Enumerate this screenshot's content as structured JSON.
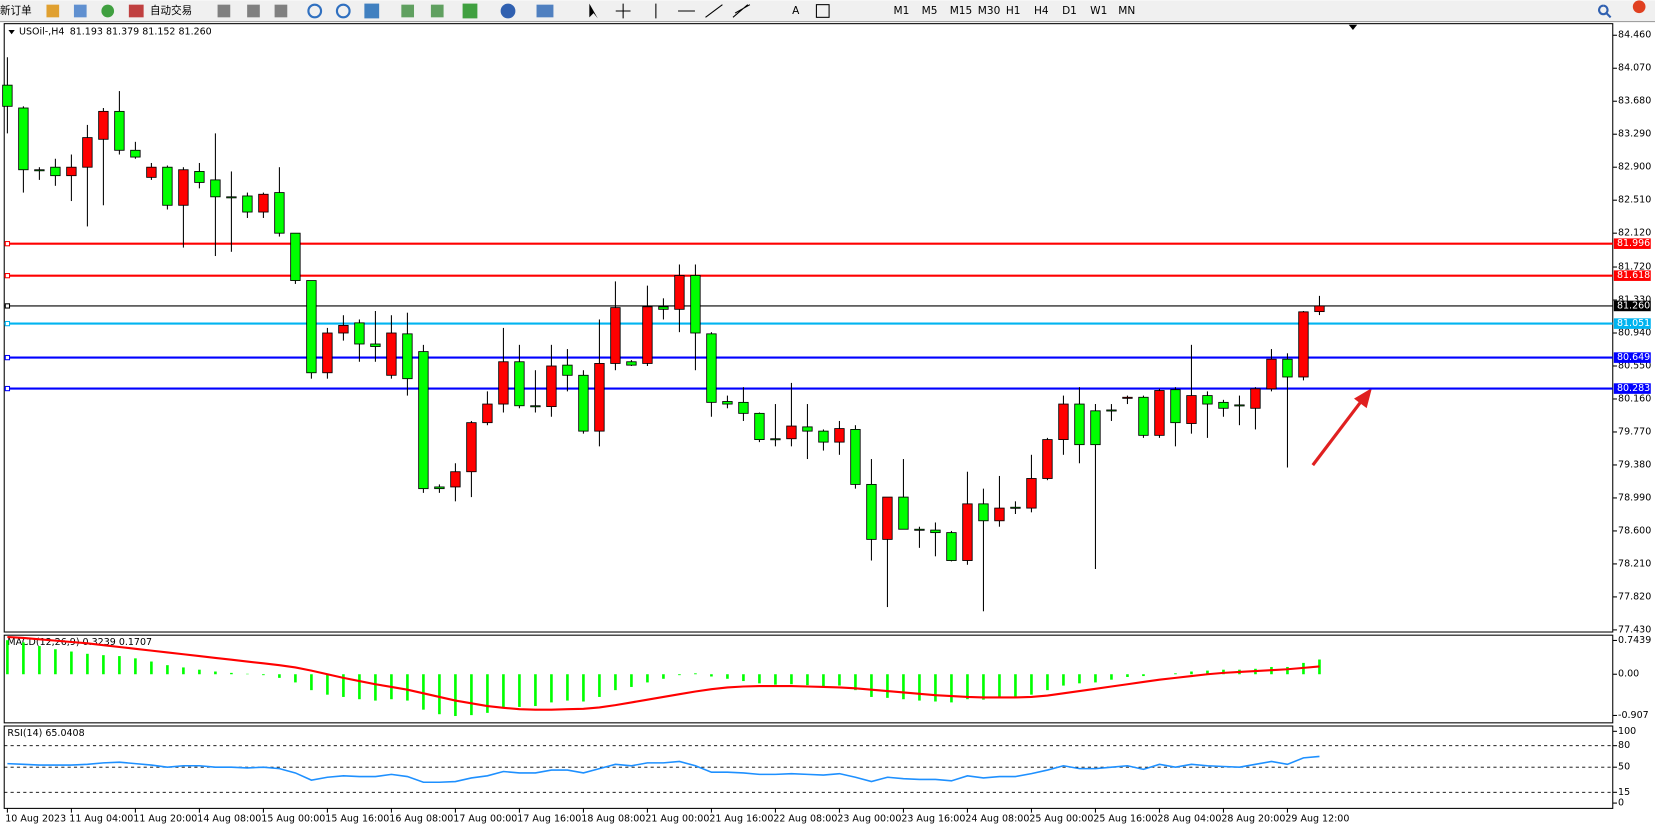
{
  "toolbar": {
    "buttons": [
      "新订单",
      "自动交易"
    ],
    "text_tool": "A",
    "periods": [
      "M1",
      "M5",
      "M15",
      "M30",
      "H1",
      "H4",
      "D1",
      "W1",
      "MN"
    ]
  },
  "chart_data": [
    {
      "type": "candlestick",
      "title": "USOil-,H4",
      "subtitle": "81.193 81.379 81.152 81.260",
      "categories": [
        "10 Aug 2023",
        null,
        null,
        null,
        "11 Aug 04:00",
        null,
        null,
        null,
        "11 Aug 20:00",
        null,
        null,
        null,
        "14 Aug 08:00",
        null,
        null,
        null,
        "15 Aug 00:00",
        null,
        null,
        null,
        "15 Aug 16:00",
        null,
        null,
        null,
        "16 Aug 08:00",
        null,
        null,
        null,
        "17 Aug 00:00",
        null,
        null,
        null,
        "17 Aug 16:00",
        null,
        null,
        null,
        "18 Aug 08:00",
        null,
        null,
        null,
        "21 Aug 00:00",
        null,
        null,
        null,
        "21 Aug 16:00",
        null,
        null,
        null,
        "22 Aug 08:00",
        null,
        null,
        null,
        "23 Aug 00:00",
        null,
        null,
        null,
        "23 Aug 16:00",
        null,
        null,
        null,
        "24 Aug 08:00",
        null,
        null,
        null,
        "25 Aug 00:00",
        null,
        null,
        null,
        "25 Aug 16:00",
        null,
        null,
        null,
        "28 Aug 04:00",
        null,
        null,
        null,
        "28 Aug 20:00",
        null,
        null,
        null,
        "29 Aug 12:00",
        null,
        null
      ],
      "open": [
        83.87,
        83.6,
        82.87,
        82.9,
        82.8,
        82.9,
        83.23,
        83.56,
        83.1,
        82.78,
        82.9,
        82.45,
        82.85,
        82.75,
        82.55,
        82.56,
        82.37,
        82.6,
        82.12,
        81.56,
        80.47,
        80.94,
        81.06,
        80.81,
        80.44,
        80.93,
        80.72,
        79.12,
        79.12,
        79.3,
        79.88,
        80.1,
        80.6,
        80.08,
        80.07,
        80.56,
        80.44,
        79.78,
        80.58,
        80.6,
        80.58,
        81.25,
        81.22,
        81.62,
        80.93,
        80.13,
        80.12,
        79.99,
        79.69,
        79.69,
        79.83,
        79.78,
        79.65,
        79.8,
        79.15,
        78.5,
        79.0,
        78.62,
        78.61,
        78.58,
        78.25,
        78.92,
        78.72,
        78.88,
        78.87,
        79.22,
        79.68,
        80.1,
        80.02,
        80.03,
        80.17,
        80.18,
        79.73,
        80.27,
        79.87,
        80.2,
        80.12,
        80.09,
        80.05,
        80.28,
        80.63,
        80.42,
        81.193
      ],
      "high": [
        84.2,
        83.62,
        82.9,
        83.0,
        83.05,
        83.4,
        83.6,
        83.8,
        83.2,
        82.95,
        82.92,
        82.9,
        82.95,
        83.3,
        82.85,
        82.6,
        82.6,
        82.9,
        82.12,
        81.56,
        81.0,
        81.15,
        81.1,
        81.2,
        81.15,
        81.18,
        80.8,
        79.15,
        79.4,
        79.9,
        80.25,
        81.0,
        80.8,
        80.5,
        80.8,
        80.75,
        80.5,
        81.1,
        81.55,
        80.62,
        81.5,
        81.35,
        81.75,
        81.75,
        80.95,
        80.2,
        80.3,
        80.0,
        80.1,
        80.35,
        80.1,
        79.8,
        79.9,
        79.85,
        79.45,
        79.0,
        79.45,
        78.65,
        78.7,
        78.6,
        79.3,
        79.1,
        79.25,
        78.95,
        79.5,
        79.7,
        80.2,
        80.3,
        80.1,
        80.1,
        80.2,
        80.2,
        80.28,
        80.3,
        80.8,
        80.25,
        80.15,
        80.2,
        80.3,
        80.75,
        80.7,
        81.2,
        81.379
      ],
      "low": [
        83.3,
        82.6,
        82.75,
        82.68,
        82.5,
        82.2,
        82.45,
        83.05,
        83.0,
        82.75,
        82.4,
        81.95,
        82.65,
        81.85,
        81.9,
        82.3,
        82.3,
        82.08,
        81.52,
        80.4,
        80.4,
        80.85,
        80.6,
        80.6,
        80.4,
        80.2,
        79.05,
        79.05,
        78.95,
        79.0,
        79.85,
        80.0,
        80.05,
        80.0,
        79.95,
        80.25,
        79.75,
        79.6,
        80.5,
        80.55,
        80.55,
        81.1,
        80.95,
        80.5,
        79.95,
        80.05,
        79.9,
        79.65,
        79.6,
        79.6,
        79.45,
        79.55,
        79.5,
        79.1,
        78.25,
        77.7,
        78.62,
        78.4,
        78.3,
        78.24,
        78.2,
        77.65,
        78.65,
        78.8,
        78.82,
        79.2,
        79.5,
        79.4,
        78.15,
        79.9,
        80.1,
        79.7,
        79.7,
        79.6,
        79.75,
        79.7,
        79.95,
        79.85,
        79.8,
        80.25,
        79.35,
        80.38,
        81.152
      ],
      "close": [
        83.62,
        82.87,
        82.86,
        82.8,
        82.9,
        83.25,
        83.56,
        83.1,
        83.02,
        82.9,
        82.45,
        82.87,
        82.72,
        82.55,
        82.54,
        82.37,
        82.58,
        82.12,
        81.56,
        80.47,
        80.94,
        81.03,
        80.81,
        80.78,
        80.94,
        80.4,
        79.1,
        79.1,
        79.3,
        79.88,
        80.1,
        80.6,
        80.08,
        80.07,
        80.55,
        80.44,
        79.78,
        80.58,
        81.24,
        80.56,
        81.25,
        81.22,
        81.62,
        80.94,
        80.12,
        80.1,
        79.99,
        79.68,
        79.68,
        79.84,
        79.78,
        79.65,
        79.81,
        79.15,
        78.5,
        79.0,
        78.62,
        78.61,
        78.58,
        78.25,
        78.92,
        78.72,
        78.87,
        78.88,
        79.22,
        79.68,
        80.1,
        79.62,
        79.62,
        80.02,
        80.18,
        79.73,
        80.26,
        79.88,
        80.2,
        80.1,
        80.05,
        80.08,
        80.28,
        80.63,
        80.42,
        81.19,
        81.26
      ],
      "up_color": "#ff0000",
      "down_color": "#00ff00",
      "ylim": [
        77.405,
        84.597
      ],
      "yticks": [
        {
          "value": 84.46,
          "label": "84.460"
        },
        {
          "value": 84.07,
          "label": "84.070"
        },
        {
          "value": 83.68,
          "label": "83.680"
        },
        {
          "value": 83.29,
          "label": "83.290"
        },
        {
          "value": 82.9,
          "label": "82.900"
        },
        {
          "value": 82.51,
          "label": "82.510"
        },
        {
          "value": 82.12,
          "label": "82.120"
        },
        {
          "value": 81.72,
          "label": "81.720"
        },
        {
          "value": 81.33,
          "label": "81.330"
        },
        {
          "value": 80.94,
          "label": "80.940"
        },
        {
          "value": 80.55,
          "label": "80.550"
        },
        {
          "value": 80.16,
          "label": "80.160"
        },
        {
          "value": 79.77,
          "label": "79.770"
        },
        {
          "value": 79.38,
          "label": "79.380"
        },
        {
          "value": 78.99,
          "label": "78.990"
        },
        {
          "value": 78.6,
          "label": "78.600"
        },
        {
          "value": 78.21,
          "label": "78.210"
        },
        {
          "value": 77.82,
          "label": "77.820"
        },
        {
          "value": 77.43,
          "label": "77.430"
        }
      ],
      "hlines": [
        {
          "value": 81.996,
          "color": "#ff0000"
        },
        {
          "value": 81.618,
          "color": "#ff0000"
        },
        {
          "value": 81.26,
          "label": "81.260",
          "color": "#000000"
        },
        {
          "value": 81.051,
          "color": "#00b4f0"
        },
        {
          "value": 80.649,
          "color": "#0000ff"
        },
        {
          "value": 80.283,
          "color": "#0000ff"
        }
      ]
    },
    {
      "type": "macd",
      "title": "MACD(12,26,9) 0.3239 0.1707",
      "ylim": [
        -1.07,
        0.86
      ],
      "yticks": [
        0.7439,
        {
          "value": 0,
          "label": "0.00"
        },
        -0.907
      ],
      "series": [
        {
          "kind": "bar",
          "color": "#00ff00",
          "values": [
            0.75,
            0.7,
            0.62,
            0.55,
            0.5,
            0.45,
            0.42,
            0.4,
            0.35,
            0.28,
            0.2,
            0.15,
            0.1,
            0.06,
            0.03,
            0.01,
            -0.02,
            -0.08,
            -0.18,
            -0.35,
            -0.45,
            -0.5,
            -0.55,
            -0.58,
            -0.55,
            -0.58,
            -0.78,
            -0.88,
            -0.92,
            -0.9,
            -0.85,
            -0.75,
            -0.72,
            -0.7,
            -0.62,
            -0.58,
            -0.6,
            -0.5,
            -0.35,
            -0.28,
            -0.18,
            -0.1,
            -0.02,
            0.02,
            -0.05,
            -0.1,
            -0.15,
            -0.2,
            -0.23,
            -0.22,
            -0.24,
            -0.26,
            -0.25,
            -0.35,
            -0.5,
            -0.52,
            -0.55,
            -0.58,
            -0.6,
            -0.62,
            -0.55,
            -0.56,
            -0.52,
            -0.5,
            -0.45,
            -0.35,
            -0.25,
            -0.2,
            -0.18,
            -0.12,
            -0.06,
            -0.04,
            0.0,
            0.02,
            0.06,
            0.08,
            0.1,
            0.1,
            0.12,
            0.16,
            0.16,
            0.25,
            0.3239
          ]
        },
        {
          "kind": "line",
          "color": "#ff0000",
          "values": [
            0.82,
            0.8,
            0.77,
            0.74,
            0.71,
            0.68,
            0.64,
            0.6,
            0.56,
            0.52,
            0.48,
            0.44,
            0.4,
            0.36,
            0.32,
            0.28,
            0.24,
            0.2,
            0.15,
            0.08,
            0.0,
            -0.08,
            -0.15,
            -0.22,
            -0.28,
            -0.34,
            -0.42,
            -0.5,
            -0.58,
            -0.64,
            -0.7,
            -0.74,
            -0.77,
            -0.78,
            -0.78,
            -0.77,
            -0.76,
            -0.73,
            -0.68,
            -0.62,
            -0.56,
            -0.5,
            -0.44,
            -0.38,
            -0.33,
            -0.29,
            -0.27,
            -0.26,
            -0.26,
            -0.26,
            -0.27,
            -0.28,
            -0.29,
            -0.31,
            -0.34,
            -0.37,
            -0.4,
            -0.43,
            -0.46,
            -0.48,
            -0.5,
            -0.51,
            -0.51,
            -0.51,
            -0.5,
            -0.47,
            -0.42,
            -0.37,
            -0.32,
            -0.27,
            -0.22,
            -0.17,
            -0.12,
            -0.08,
            -0.04,
            0.0,
            0.03,
            0.05,
            0.07,
            0.09,
            0.11,
            0.14,
            0.1707
          ]
        }
      ]
    },
    {
      "type": "rsi",
      "title": "RSI(14) 65.0408",
      "ylim": [
        -7.4,
        107.4
      ],
      "yticks": [
        100,
        80,
        50,
        15,
        0
      ],
      "levels": [
        80,
        50,
        15
      ],
      "series": [
        {
          "kind": "line",
          "color": "#1e90ff",
          "values": [
            55,
            54,
            53,
            53,
            53,
            54,
            56,
            57,
            55,
            53,
            50,
            52,
            52,
            50,
            50,
            49,
            50,
            48,
            42,
            32,
            36,
            38,
            37,
            37,
            40,
            37,
            29,
            29,
            30,
            35,
            38,
            44,
            42,
            42,
            46,
            46,
            42,
            48,
            54,
            52,
            56,
            56,
            58,
            52,
            43,
            43,
            42,
            40,
            40,
            41,
            40,
            39,
            41,
            36,
            30,
            36,
            34,
            33,
            33,
            31,
            38,
            35,
            37,
            37,
            41,
            46,
            52,
            48,
            48,
            50,
            52,
            47,
            54,
            50,
            54,
            52,
            51,
            50,
            54,
            58,
            54,
            63,
            65.0408
          ]
        }
      ]
    }
  ]
}
